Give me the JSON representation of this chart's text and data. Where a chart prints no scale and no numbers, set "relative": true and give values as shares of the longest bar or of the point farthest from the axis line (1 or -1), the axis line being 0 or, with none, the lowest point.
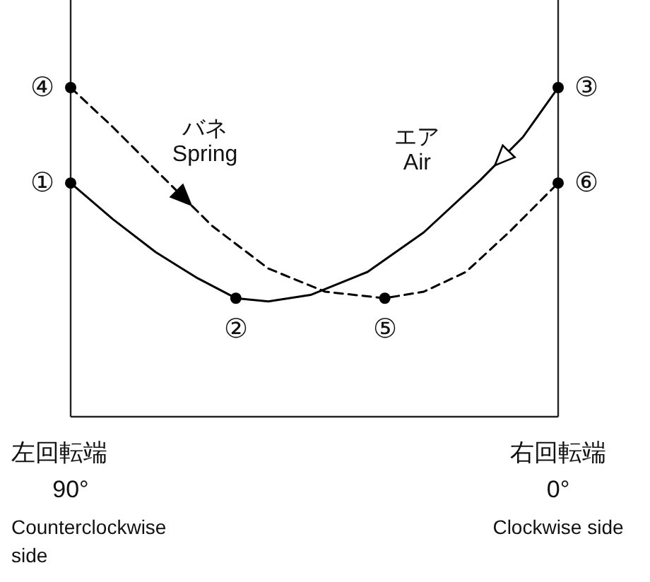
{
  "chart_data": {
    "type": "line",
    "relative": true,
    "xlim": [
      90,
      0
    ],
    "xticks": [
      {
        "value": 90,
        "label": "90°"
      },
      {
        "value": 0,
        "label": "0°"
      }
    ],
    "series": [
      {
        "name": "エア\nAir",
        "color": "#000000",
        "line_style": "solid",
        "x": [
          90,
          82.2,
          74.3,
          66.5,
          59.5,
          53.5,
          45.7,
          35.2,
          24.8,
          14.3,
          6.5,
          0
        ],
        "values": [
          0.71,
          0.6,
          0.5,
          0.42,
          0.36,
          0.35,
          0.37,
          0.44,
          0.56,
          0.72,
          0.85,
          1
        ]
      },
      {
        "name": "バネ\nSpring",
        "color": "#000000",
        "line_style": "dashed",
        "x": [
          90,
          82.2,
          74.3,
          63.9,
          53.5,
          43,
          32,
          24.8,
          17,
          9.1,
          0
        ],
        "values": [
          1,
          0.88,
          0.75,
          0.58,
          0.45,
          0.38,
          0.36,
          0.38,
          0.44,
          0.56,
          0.71
        ]
      },
      {
        "type": "scatter",
        "color": "#000000",
        "marker": "circle",
        "x": [
          90,
          59.5,
          0,
          90,
          32,
          0
        ],
        "values": [
          0.71,
          0.36,
          1,
          1,
          0.36,
          0.71
        ]
      }
    ],
    "annotations": [
      "左回転端",
      "Counterclockwise side",
      "右回転端",
      "Clockwise side",
      {
        "text": "①",
        "x": 90,
        "y": 0.71
      },
      {
        "text": "②",
        "x": 59.5,
        "y": 0.36
      },
      {
        "text": "③",
        "x": 0,
        "y": 1
      },
      {
        "text": "④",
        "x": 90,
        "y": 1
      },
      {
        "text": "⑤",
        "x": 32,
        "y": 0.36
      },
      {
        "text": "⑥",
        "x": 0,
        "y": 0.71
      }
    ]
  }
}
